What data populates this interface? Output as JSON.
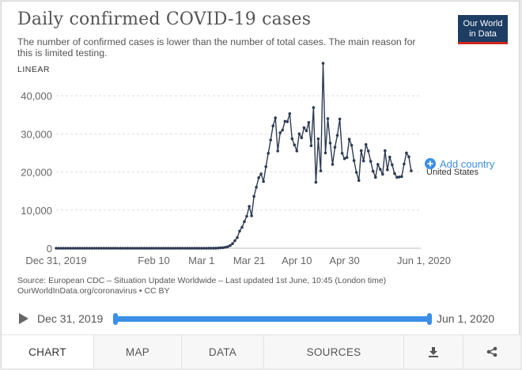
{
  "header": {
    "title": "Daily confirmed COVID-19 cases",
    "subtitle": "The number of confirmed cases is lower than the number of total cases. The main reason for this is limited testing.",
    "logo_line1": "Our World",
    "logo_line2": "in Data",
    "scale_label": "LINEAR"
  },
  "legend": {
    "add_country_label": "Add country",
    "series_label": "United States"
  },
  "footer": {
    "source_line1": "Source: European CDC – Situation Update Worldwide – Last updated 1st June, 10:45 (London time)",
    "source_line2": "OurWorldInData.org/coronavirus • CC BY"
  },
  "timeline": {
    "start_label": "Dec 31, 2019",
    "end_label": "Jun 1, 2020"
  },
  "tabs": [
    {
      "label": "CHART"
    },
    {
      "label": "MAP"
    },
    {
      "label": "DATA"
    },
    {
      "label": "SOURCES"
    }
  ],
  "colors": {
    "series": "#2d3b52",
    "accent": "#3b8fe8",
    "grid": "#dddddd",
    "logo_bg": "#1d3d63",
    "logo_bar": "#ce261e"
  },
  "chart_data": {
    "type": "line",
    "title": "Daily confirmed COVID-19 cases",
    "xlabel": "",
    "ylabel": "",
    "ylim": [
      0,
      45000
    ],
    "yticks": [
      0,
      10000,
      20000,
      30000,
      40000
    ],
    "ytick_labels": [
      "0",
      "10,000",
      "20,000",
      "30,000",
      "40,000"
    ],
    "xticks": [
      0,
      41,
      61,
      81,
      101,
      121,
      153
    ],
    "xtick_labels": [
      "Dec 31, 2019",
      "Feb 10",
      "Mar 1",
      "Mar 21",
      "Apr 10",
      "Apr 30",
      "Jun 1, 2020"
    ],
    "xlim": [
      0,
      153
    ],
    "x_unit": "days since Dec 31, 2019",
    "series": [
      {
        "name": "United States",
        "start_date": "Dec 31, 2019",
        "values": [
          0,
          0,
          0,
          0,
          0,
          0,
          0,
          0,
          0,
          0,
          0,
          0,
          0,
          0,
          0,
          0,
          0,
          0,
          0,
          0,
          0,
          0,
          1,
          0,
          1,
          0,
          3,
          0,
          0,
          0,
          0,
          1,
          1,
          2,
          0,
          0,
          3,
          0,
          0,
          0,
          0,
          0,
          0,
          1,
          0,
          0,
          0,
          0,
          0,
          0,
          0,
          0,
          0,
          0,
          0,
          0,
          0,
          0,
          0,
          0,
          0,
          3,
          5,
          8,
          16,
          15,
          29,
          28,
          60,
          130,
          150,
          250,
          400,
          700,
          1200,
          2000,
          2800,
          4500,
          5500,
          7000,
          8400,
          11000,
          8500,
          13600,
          16000,
          18500,
          19500,
          17500,
          21400,
          24900,
          28400,
          32100,
          34200,
          25500,
          30300,
          31000,
          33300,
          33200,
          35300,
          28700,
          27100,
          25500,
          30000,
          29000,
          31600,
          30800,
          33000,
          26900,
          36900,
          17300,
          28700,
          20300,
          48500,
          25000,
          34000,
          27600,
          22000,
          26500,
          29600,
          33900,
          24900,
          23500,
          23800,
          28600,
          27000,
          23000,
          19900,
          17800,
          25600,
          22900,
          27200,
          25500,
          22800,
          20200,
          18600,
          22000,
          20700,
          19400,
          25600,
          20600,
          23900,
          21900,
          19600,
          18600,
          18700,
          18800,
          22100,
          25000,
          24000,
          20300
        ]
      }
    ]
  }
}
